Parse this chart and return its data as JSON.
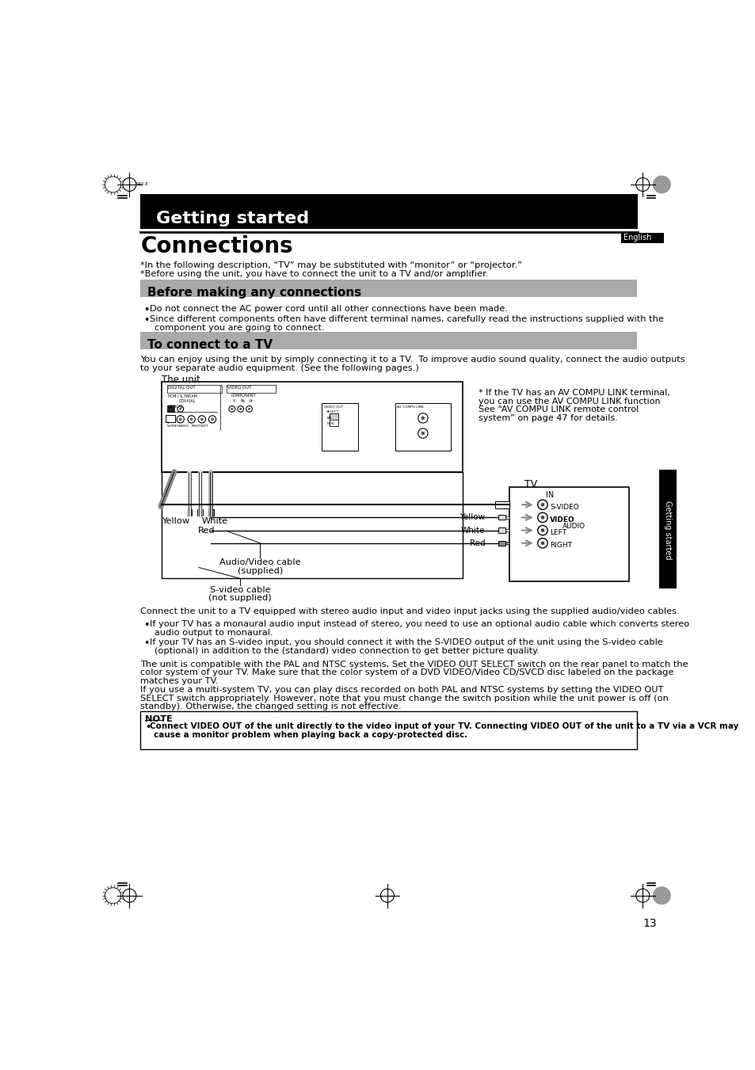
{
  "title": "Getting started",
  "section1": "Connections",
  "english_label": "English",
  "getting_started_sidebar": "Getting started",
  "intro_text1": "*In the following description, “TV” may be substituted with “monitor” or “projector.”",
  "intro_text2": "*Before using the unit, you have to connect the unit to a TV and/or amplifier.",
  "section2": "Before making any connections",
  "bullet1": "Do not connect the AC power cord until all other connections have been made.",
  "bullet2_line1": "Since different components often have different terminal names, carefully read the instructions supplied with the",
  "bullet2_line2": "component you are going to connect.",
  "section3": "To connect to a TV",
  "para1_line1": "You can enjoy using the unit by simply connecting it to a TV.  To improve audio sound quality, connect the audio outputs",
  "para1_line2": "to your separate audio equipment. (See the following pages.)",
  "the_unit": "The unit",
  "av_compu_link_note1": "* If the TV has an AV COMPU LINK terminal,",
  "av_compu_link_note2": "you can use the AV COMPU LINK function",
  "av_compu_link_note3": "See “AV COMPU LINK remote control",
  "av_compu_link_note4": "system” on page 47 for details.",
  "tv_label": "TV",
  "in_label": "IN",
  "s_video_label": "S-VIDEO",
  "video_label": "VIDEO",
  "left_label": "LEFT",
  "audio_label": "AUDIO",
  "right_label": "RIGHT",
  "yellow_label1": "Yellow",
  "white_label1": "White",
  "red_label1": "Red",
  "yellow_label2": "Yellow",
  "white_label2": "White",
  "red_label2": "Red",
  "av_cable_label1": "Audio/Video cable",
  "av_cable_label2": "(supplied)",
  "svideo_cable_label1": "S-video cable",
  "svideo_cable_label2": "(not supplied)",
  "connect_para": "Connect the unit to a TV equipped with stereo audio input and video input jacks using the supplied audio/video cables.",
  "bullet3_line1": "If your TV has a monaural audio input instead of stereo, you need to use an optional audio cable which converts stereo",
  "bullet3_line2": "audio output to monaural.",
  "bullet4_line1": "If your TV has an S-video input, you should connect it with the S-VIDEO output of the unit using the S-video cable",
  "bullet4_line2": "(optional) in addition to the (standard) video connection to get better picture quality.",
  "pal_para1_line1": "The unit is compatible with the PAL and NTSC systems, Set the VIDEO OUT SELECT switch on the rear panel to match the",
  "pal_para1_line2": "color system of your TV. Make sure that the color system of a DVD VIDEO/Video CD/SVCD disc labeled on the package",
  "pal_para1_line3": "matches your TV.",
  "pal_para2_line1": "If you use a multi-system TV, you can play discs recorded on both PAL and NTSC systems by setting the VIDEO OUT",
  "pal_para2_line2": "SELECT switch appropriately. However, note that you must change the switch position while the unit power is off (on",
  "pal_para2_line3": "standby). Otherwise, the changed setting is not effective.",
  "note_title": "NOTE",
  "note_line1": "Connect VIDEO OUT of the unit directly to the video input of your TV. Connecting VIDEO OUT of the unit to a TV via a VCR may",
  "note_line2": "cause a monitor problem when playing back a copy-protected disc.",
  "page_number": "13",
  "header_black_bg": "#000000",
  "header_text_color": "#ffffff",
  "gray_section_bg": "#aaaaaa",
  "sidebar_bg": "#000000",
  "sidebar_text": "#ffffff",
  "note_border": "#000000",
  "body_bg": "#ffffff",
  "body_text": "#000000"
}
